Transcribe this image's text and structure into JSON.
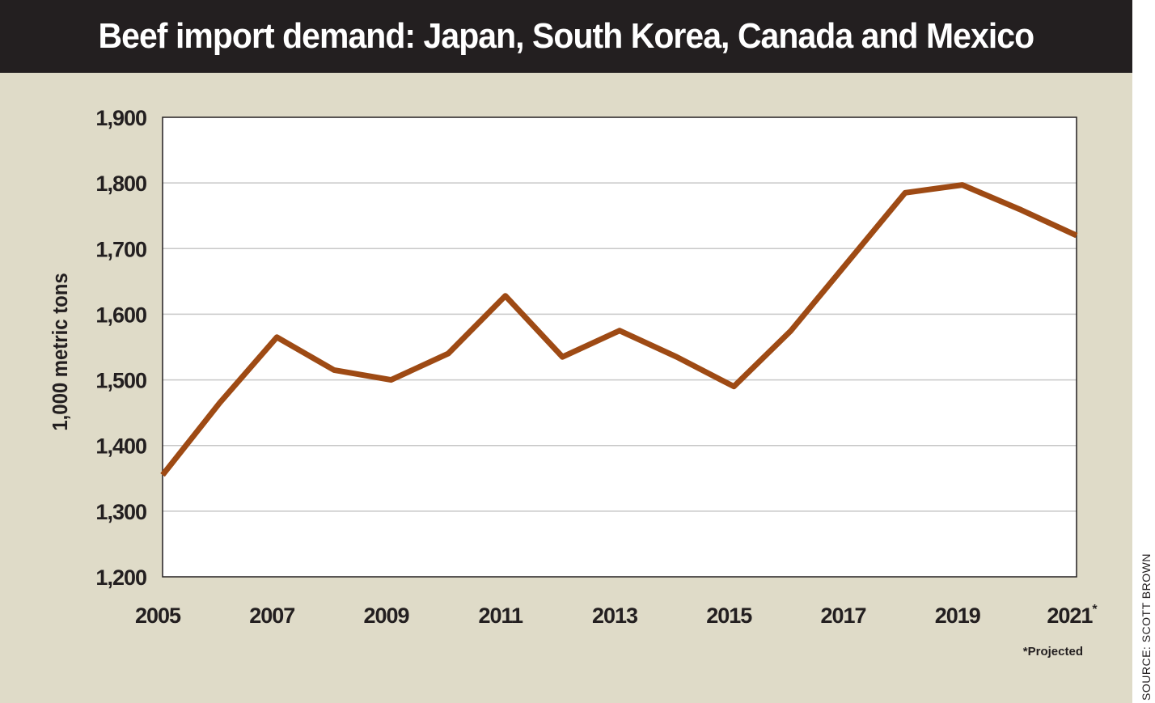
{
  "title": "Beef import demand: Japan, South Korea, Canada and Mexico",
  "source": "SOURCE: SCOTT BROWN",
  "footnote": "*Projected",
  "colors": {
    "line": "#9e4a14",
    "title_bar": "#231f20",
    "background": "#dfdbc8",
    "plot_background": "#ffffff",
    "grid": "#c8c8c8"
  },
  "chart_data": {
    "type": "line",
    "title": "Beef import demand: Japan, South Korea, Canada and Mexico",
    "xlabel": "",
    "ylabel": "1,000 metric tons",
    "xlim": [
      2005,
      2021
    ],
    "ylim": [
      1200,
      1900
    ],
    "yticks": [
      1200,
      1300,
      1400,
      1500,
      1600,
      1700,
      1800,
      1900
    ],
    "ytick_labels": [
      "1,200",
      "1,300",
      "1,400",
      "1,500",
      "1,600",
      "1,700",
      "1,800",
      "1,900"
    ],
    "xticks": [
      2005,
      2007,
      2009,
      2011,
      2013,
      2015,
      2017,
      2019,
      2021
    ],
    "xtick_labels": [
      "2005",
      "2007",
      "2009",
      "2011",
      "2013",
      "2015",
      "2017",
      "2019",
      "2021"
    ],
    "xtick_superscript": {
      "2021": "*"
    },
    "grid": "horizontal",
    "series": [
      {
        "x": [
          2005,
          2006,
          2007,
          2008,
          2009,
          2010,
          2011,
          2012,
          2013,
          2014,
          2015,
          2016,
          2017,
          2018,
          2019,
          2020,
          2021
        ],
        "y": [
          1355,
          1465,
          1565,
          1515,
          1500,
          1540,
          1628,
          1535,
          1575,
          1535,
          1490,
          1575,
          1680,
          1785,
          1797,
          1760,
          1720
        ]
      }
    ]
  }
}
